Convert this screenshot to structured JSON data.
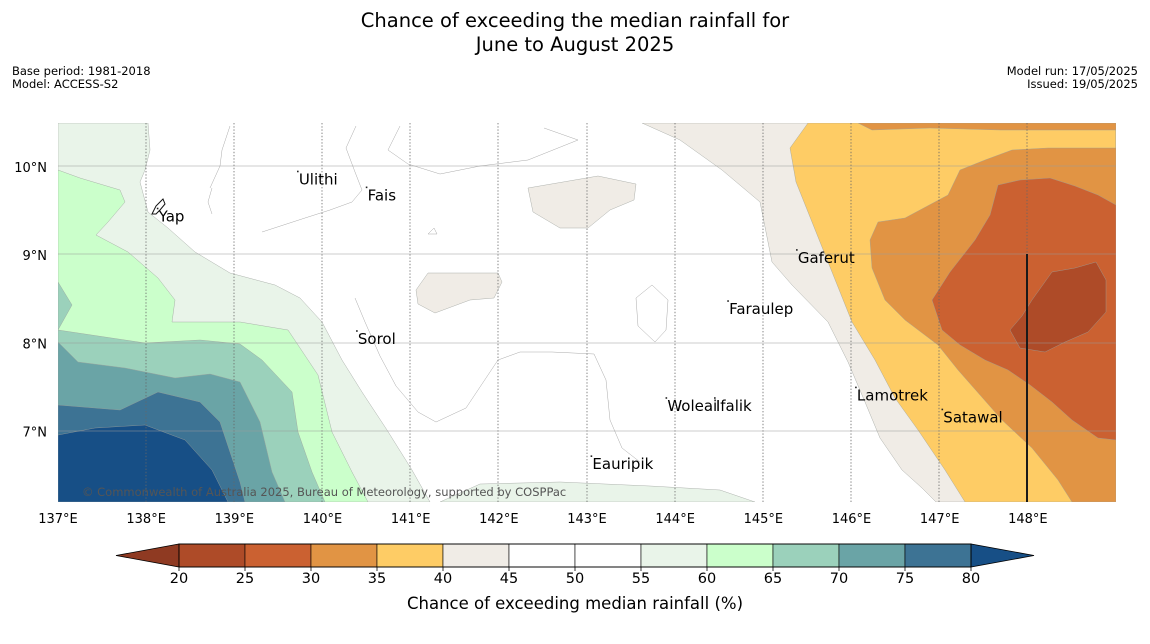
{
  "title": {
    "line1": "Chance of exceeding the median rainfall for",
    "line2": "June to August 2025"
  },
  "meta_left": {
    "base_period": "Base period: 1981-2018",
    "model": "Model: ACCESS-S2"
  },
  "meta_right": {
    "model_run": "Model run: 17/05/2025",
    "issued": "Issued: 19/05/2025"
  },
  "map": {
    "lon_range": [
      137,
      149
    ],
    "lat_range": [
      6.2,
      10.5
    ],
    "lon_ticks": [
      {
        "value": 137,
        "label": "137°E"
      },
      {
        "value": 138,
        "label": "138°E"
      },
      {
        "value": 139,
        "label": "139°E"
      },
      {
        "value": 140,
        "label": "140°E"
      },
      {
        "value": 141,
        "label": "141°E"
      },
      {
        "value": 142,
        "label": "142°E"
      },
      {
        "value": 143,
        "label": "143°E"
      },
      {
        "value": 144,
        "label": "144°E"
      },
      {
        "value": 145,
        "label": "145°E"
      },
      {
        "value": 146,
        "label": "146°E"
      },
      {
        "value": 147,
        "label": "147°E"
      },
      {
        "value": 148,
        "label": "148°E"
      }
    ],
    "lat_ticks": [
      {
        "value": 10,
        "label": "10°N"
      },
      {
        "value": 9,
        "label": "9°N"
      },
      {
        "value": 8,
        "label": "8°N"
      },
      {
        "value": 7,
        "label": "7°N"
      }
    ],
    "places": [
      {
        "name": "Ulithi",
        "lon": 139.72,
        "lat": 9.95
      },
      {
        "name": "Fais",
        "lon": 140.5,
        "lat": 9.77
      },
      {
        "name": "Yap",
        "lon": 138.13,
        "lat": 9.53
      },
      {
        "name": "Gaferut",
        "lon": 145.38,
        "lat": 9.06
      },
      {
        "name": "Faraulep",
        "lon": 144.6,
        "lat": 8.48
      },
      {
        "name": "Sorol",
        "lon": 140.39,
        "lat": 8.14
      },
      {
        "name": "Lamotrek",
        "lon": 146.05,
        "lat": 7.5
      },
      {
        "name": "Woleai",
        "lon": 143.9,
        "lat": 7.38
      },
      {
        "name": "Ifalik",
        "lon": 144.45,
        "lat": 7.38
      },
      {
        "name": "Satawal",
        "lon": 147.03,
        "lat": 7.25
      },
      {
        "name": "Eauripik",
        "lon": 143.05,
        "lat": 6.72
      }
    ],
    "copyright": "© Commonwealth of Australia 2025, Bureau of Meteorology, supported by COSPPac"
  },
  "colorbar": {
    "ticks": [
      "20",
      "25",
      "30",
      "35",
      "40",
      "45",
      "50",
      "55",
      "60",
      "65",
      "70",
      "75",
      "80"
    ],
    "colors": [
      "#ae4b28",
      "#cb6131",
      "#e19444",
      "#fecc65",
      "#f0ece6",
      "#ffffff",
      "#ffffff",
      "#e9f4e9",
      "#cbffcb",
      "#9bd1bb",
      "#6aa4a6",
      "#3d7394"
    ],
    "below_color": "#8f3a22",
    "above_color": "#174f86",
    "label": "Chance of exceeding median rainfall (%)"
  }
}
